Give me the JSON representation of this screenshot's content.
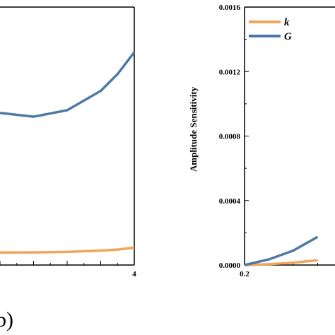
{
  "colors": {
    "k": "#f0a65a",
    "G": "#4e79a7",
    "axis": "#000000"
  },
  "chart_data": [
    {
      "type": "line",
      "panel": "left",
      "x_tick_labels": [
        "4"
      ],
      "xlim": [
        null,
        4
      ],
      "series": [
        {
          "name": "",
          "color_key": "G",
          "x": [
            0.0,
            1.0,
            2.0,
            3.0,
            3.5,
            4.0
          ],
          "y": [
            0.0118,
            0.0115,
            0.012,
            0.0135,
            0.0148,
            0.0165
          ]
        },
        {
          "name": "",
          "color_key": "k",
          "x": [
            0.0,
            1.0,
            2.0,
            3.0,
            3.5,
            4.0
          ],
          "y": [
            0.00097,
            0.00098,
            0.00102,
            0.00112,
            0.0012,
            0.00135
          ]
        }
      ],
      "panel_label": "b)"
    },
    {
      "type": "line",
      "panel": "right",
      "ylabel": "Amplitude Sensitivity",
      "ylim": [
        0,
        0.0016
      ],
      "y_ticks": [
        0.0,
        0.0004,
        0.0008,
        0.0012,
        0.0016
      ],
      "y_tick_labels": [
        "0.0000",
        "0.0004",
        "0.0008",
        "0.0012",
        "0.0016"
      ],
      "x_tick_labels": [
        "0.2"
      ],
      "x_first_tick": 0.2,
      "legend": {
        "position": "top-left"
      },
      "series": [
        {
          "name": "k",
          "color_key": "k",
          "x": [
            0.2,
            0.25,
            0.3,
            0.35
          ],
          "y": [
            0.0,
            5e-06,
            1.5e-05,
            3e-05
          ]
        },
        {
          "name": "G",
          "color_key": "G",
          "x": [
            0.2,
            0.25,
            0.3,
            0.35
          ],
          "y": [
            0.0,
            3.5e-05,
            9e-05,
            0.000175
          ]
        }
      ]
    }
  ]
}
